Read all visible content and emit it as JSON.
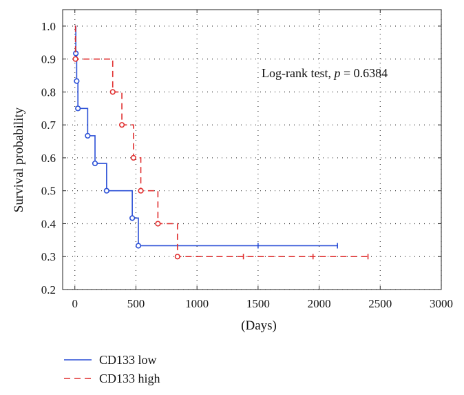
{
  "chart_data": {
    "type": "line",
    "subtype": "kaplan-meier step",
    "title": "",
    "xlabel": "(Days)",
    "ylabel": "Survival probability",
    "xlim": [
      -100,
      3000
    ],
    "ylim": [
      0.2,
      1.05
    ],
    "xticks": [
      0,
      500,
      1000,
      1500,
      2000,
      2500,
      3000
    ],
    "yticks": [
      0.2,
      0.3,
      0.4,
      0.5,
      0.6,
      0.7,
      0.8,
      0.9,
      1.0
    ],
    "xtick_labels": [
      "0",
      "500",
      "1000",
      "1500",
      "2000",
      "2500",
      "3000"
    ],
    "ytick_labels": [
      "0.2",
      "0.3",
      "0.4",
      "0.5",
      "0.6",
      "0.7",
      "0.8",
      "0.9",
      "1.0"
    ],
    "grid": "dotted",
    "annotation": {
      "prefix": "Log-rank test, ",
      "p_symbol": "p",
      "suffix": " = 0.6384"
    },
    "legend": {
      "placement": "bottom-left",
      "entries": [
        "CD133 low",
        "CD133 high"
      ]
    },
    "series": [
      {
        "name": "CD133 low",
        "color": "#2a4fd6",
        "dash": "solid",
        "steps": [
          {
            "x": 0,
            "y": 1.0
          },
          {
            "x": 8,
            "y": 0.917
          },
          {
            "x": 15,
            "y": 0.833
          },
          {
            "x": 25,
            "y": 0.75
          },
          {
            "x": 105,
            "y": 0.667
          },
          {
            "x": 165,
            "y": 0.583
          },
          {
            "x": 260,
            "y": 0.5
          },
          {
            "x": 470,
            "y": 0.417
          },
          {
            "x": 520,
            "y": 0.333
          }
        ],
        "end_x": 2150,
        "censored_x": [
          1500,
          2150
        ]
      },
      {
        "name": "CD133 high",
        "color": "#e03030",
        "dash": "dashed",
        "steps": [
          {
            "x": 0,
            "y": 1.0
          },
          {
            "x": 5,
            "y": 0.9
          },
          {
            "x": 310,
            "y": 0.8
          },
          {
            "x": 385,
            "y": 0.7
          },
          {
            "x": 480,
            "y": 0.6
          },
          {
            "x": 540,
            "y": 0.5
          },
          {
            "x": 680,
            "y": 0.4
          },
          {
            "x": 840,
            "y": 0.3
          }
        ],
        "end_x": 2400,
        "censored_x": [
          1380,
          1950,
          2400
        ]
      }
    ]
  }
}
